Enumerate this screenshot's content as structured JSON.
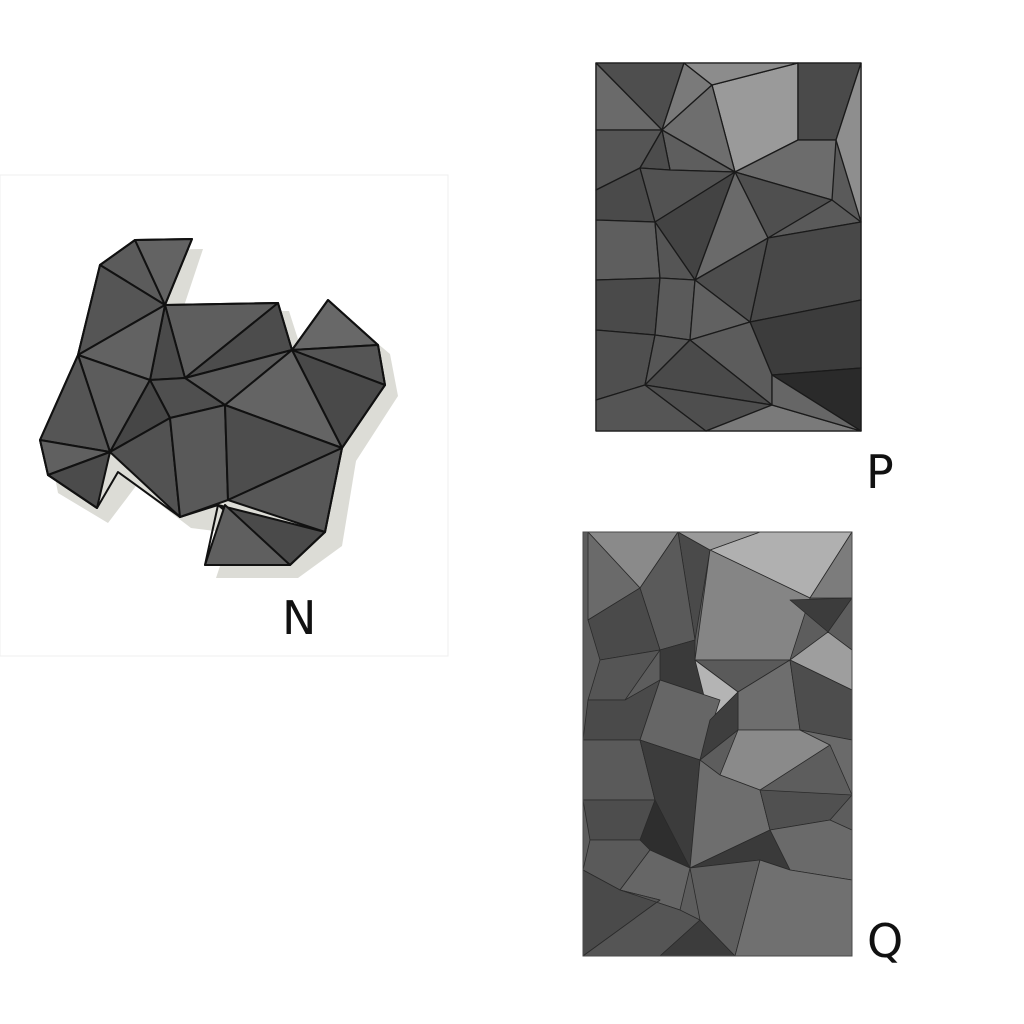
{
  "figures": [
    {
      "id": "N",
      "label": "N",
      "description_type": "irregular low-poly shape"
    },
    {
      "id": "P",
      "label": "P",
      "description_type": "rectangular low-poly panel"
    },
    {
      "id": "Q",
      "label": "Q",
      "description_type": "rectangular faceted relief panel"
    }
  ],
  "colors": {
    "background": "#ffffff",
    "panel_frame": "#e8e8e8",
    "dark": "#3a3a3a",
    "mid": "#5a5a5a",
    "light": "#8a8a8a",
    "edge": "#1a1a1a"
  }
}
